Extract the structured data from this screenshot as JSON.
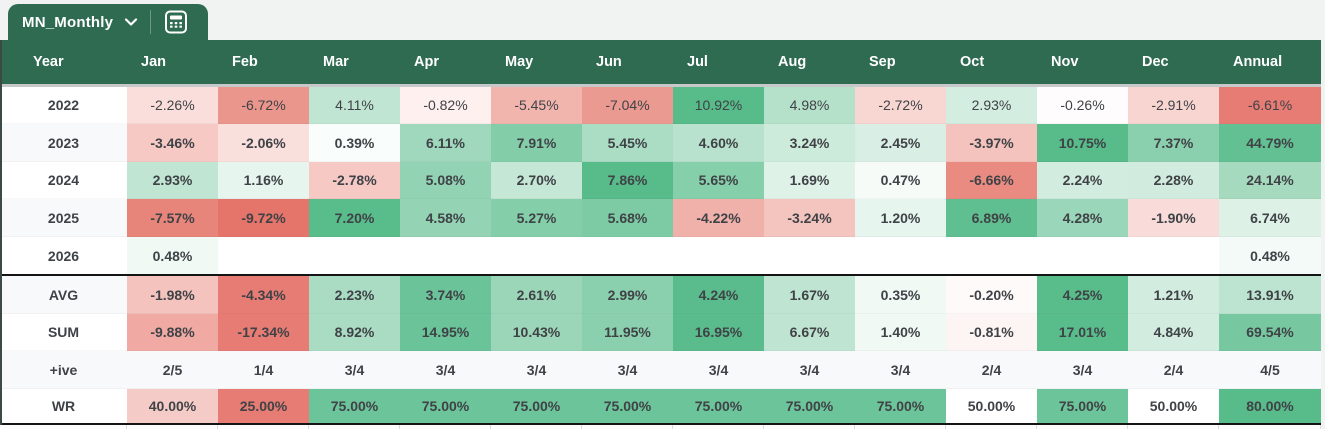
{
  "tab": {
    "title": "MN_Monthly"
  },
  "colors": {
    "brand": "#2e6b51",
    "topbar": "#f1f3f3",
    "divider": "#c6c8ca",
    "thick_border": "#141414",
    "text": "#3f4246",
    "header_text": "#ffffff",
    "band_alt": "#f8f9fa",
    "scale_red_max": "#e67c73",
    "scale_green_max": "#57bb8a"
  },
  "header": {
    "columns": [
      "Year",
      "Jan",
      "Feb",
      "Mar",
      "Apr",
      "May",
      "Jun",
      "Jul",
      "Aug",
      "Sep",
      "Oct",
      "Nov",
      "Dec",
      "Annual"
    ]
  },
  "rows": [
    {
      "label": "2022",
      "band": "#ffffff",
      "bold": false,
      "thick_bottom": false,
      "cells": [
        [
          "-2.26%",
          "#f9dedb"
        ],
        [
          "-6.72%",
          "#eb968c"
        ],
        [
          "4.11%",
          "#c0e5d3"
        ],
        [
          "-0.82%",
          "#fdf0ee"
        ],
        [
          "-5.45%",
          "#f2b5ae"
        ],
        [
          "-7.04%",
          "#eb9a91"
        ],
        [
          "10.92%",
          "#57bb8a"
        ],
        [
          "4.98%",
          "#b5e1cb"
        ],
        [
          "-2.72%",
          "#f8d7d3"
        ],
        [
          "2.93%",
          "#d3ede0"
        ],
        [
          "-0.26%",
          "#fefcfc"
        ],
        [
          "-2.91%",
          "#f8d5d1"
        ],
        [
          "-6.61%",
          "#e67c73"
        ]
      ]
    },
    {
      "label": "2023",
      "band": "#f8f9fa",
      "bold": true,
      "thick_bottom": false,
      "cells": [
        [
          "-3.46%",
          "#f6c9c4"
        ],
        [
          "-2.06%",
          "#fae0dd"
        ],
        [
          "0.39%",
          "#f9fdfb"
        ],
        [
          "6.11%",
          "#a0d8bd"
        ],
        [
          "7.91%",
          "#83cda9"
        ],
        [
          "5.45%",
          "#aaddc3"
        ],
        [
          "4.60%",
          "#b8e2cd"
        ],
        [
          "3.24%",
          "#cdebdb"
        ],
        [
          "2.45%",
          "#d9efe5"
        ],
        [
          "-3.97%",
          "#f5c3bd"
        ],
        [
          "10.75%",
          "#57bb8a"
        ],
        [
          "7.37%",
          "#8bd0ae"
        ],
        [
          "44.79%",
          "#63c093"
        ]
      ]
    },
    {
      "label": "2024",
      "band": "#ffffff",
      "bold": true,
      "thick_bottom": false,
      "cells": [
        [
          "2.93%",
          "#c0e5d2"
        ],
        [
          "1.16%",
          "#e6f5ee"
        ],
        [
          "-2.78%",
          "#f6c9c5"
        ],
        [
          "5.08%",
          "#92d3b4"
        ],
        [
          "2.70%",
          "#c5e7d6"
        ],
        [
          "7.86%",
          "#57bb8a"
        ],
        [
          "5.65%",
          "#86cfab"
        ],
        [
          "1.69%",
          "#dff2e8"
        ],
        [
          "0.47%",
          "#f6fbf8"
        ],
        [
          "-6.66%",
          "#e98b81"
        ],
        [
          "2.24%",
          "#d2ecdf"
        ],
        [
          "2.28%",
          "#d1ecdf"
        ],
        [
          "24.14%",
          "#a6dabf"
        ]
      ]
    },
    {
      "label": "2025",
      "band": "#f8f9fa",
      "bold": true,
      "thick_bottom": false,
      "cells": [
        [
          "-7.57%",
          "#e8857b"
        ],
        [
          "-9.72%",
          "#e5746a"
        ],
        [
          "7.20%",
          "#58bc8b"
        ],
        [
          "4.58%",
          "#94d4b5"
        ],
        [
          "5.27%",
          "#84cea9"
        ],
        [
          "5.68%",
          "#7ccba4"
        ],
        [
          "-4.22%",
          "#f0b1aa"
        ],
        [
          "-3.24%",
          "#f4c4bf"
        ],
        [
          "1.20%",
          "#e6f5ee"
        ],
        [
          "6.89%",
          "#60bf90"
        ],
        [
          "4.28%",
          "#9ad6b9"
        ],
        [
          "-1.90%",
          "#f9dcd9"
        ],
        [
          "6.74%",
          "#ddf1e7"
        ]
      ]
    },
    {
      "label": "2026",
      "band": "#ffffff",
      "bold": true,
      "thick_bottom": true,
      "cells": [
        [
          "0.48%",
          "#f0f9f4"
        ],
        [
          "",
          ""
        ],
        [
          "",
          ""
        ],
        [
          "",
          ""
        ],
        [
          "",
          ""
        ],
        [
          "",
          ""
        ],
        [
          "",
          ""
        ],
        [
          "",
          ""
        ],
        [
          "",
          ""
        ],
        [
          "",
          ""
        ],
        [
          "",
          ""
        ],
        [
          "",
          ""
        ],
        [
          "0.48%",
          "#f4faf7"
        ]
      ]
    },
    {
      "label": "AVG",
      "band": "#f8f9fa",
      "bold": true,
      "thick_bottom": false,
      "cells": [
        [
          "-1.98%",
          "#f4c3be"
        ],
        [
          "-4.34%",
          "#e67c73"
        ],
        [
          "2.23%",
          "#a9dcc3"
        ],
        [
          "3.74%",
          "#6bc399"
        ],
        [
          "2.61%",
          "#9bd6b9"
        ],
        [
          "2.99%",
          "#8bd0ae"
        ],
        [
          "4.24%",
          "#5abc8c"
        ],
        [
          "1.67%",
          "#bfe5d2"
        ],
        [
          "0.35%",
          "#f1f9f5"
        ],
        [
          "-0.20%",
          "#fefafa"
        ],
        [
          "4.25%",
          "#59bc8b"
        ],
        [
          "1.21%",
          "#d2ecdf"
        ],
        [
          "13.91%",
          "#bce4d0"
        ]
      ]
    },
    {
      "label": "SUM",
      "band": "#ffffff",
      "bold": true,
      "thick_bottom": false,
      "cells": [
        [
          "-9.88%",
          "#f0aaa3"
        ],
        [
          "-17.34%",
          "#e67c73"
        ],
        [
          "8.92%",
          "#a9dcc3"
        ],
        [
          "14.95%",
          "#6bc399"
        ],
        [
          "10.43%",
          "#9bd6b9"
        ],
        [
          "11.95%",
          "#8bd0ae"
        ],
        [
          "16.95%",
          "#5abc8c"
        ],
        [
          "6.67%",
          "#bfe5d2"
        ],
        [
          "1.40%",
          "#f1f9f5"
        ],
        [
          "-0.81%",
          "#fdf5f4"
        ],
        [
          "17.01%",
          "#58bc8b"
        ],
        [
          "4.84%",
          "#d2ecdf"
        ],
        [
          "69.54%",
          "#77c8a1"
        ]
      ]
    },
    {
      "label": "+ive",
      "band": "#f8f9fa",
      "bold": true,
      "thick_bottom": false,
      "cells": [
        [
          "2/5",
          "#f8f9fa"
        ],
        [
          "1/4",
          "#f8f9fa"
        ],
        [
          "3/4",
          "#f8f9fa"
        ],
        [
          "3/4",
          "#f8f9fa"
        ],
        [
          "3/4",
          "#f8f9fa"
        ],
        [
          "3/4",
          "#f8f9fa"
        ],
        [
          "3/4",
          "#f8f9fa"
        ],
        [
          "3/4",
          "#f8f9fa"
        ],
        [
          "3/4",
          "#f8f9fa"
        ],
        [
          "2/4",
          "#f8f9fa"
        ],
        [
          "3/4",
          "#f8f9fa"
        ],
        [
          "2/4",
          "#f8f9fa"
        ],
        [
          "4/5",
          "#f8f9fa"
        ]
      ]
    },
    {
      "label": "WR",
      "band": "#ffffff",
      "bold": true,
      "thick_bottom": true,
      "cells": [
        [
          "40.00%",
          "#f5cbc7"
        ],
        [
          "25.00%",
          "#e67c73"
        ],
        [
          "75.00%",
          "#6cc49a"
        ],
        [
          "75.00%",
          "#6cc49a"
        ],
        [
          "75.00%",
          "#6cc49a"
        ],
        [
          "75.00%",
          "#6cc49a"
        ],
        [
          "75.00%",
          "#6cc49a"
        ],
        [
          "75.00%",
          "#6cc49a"
        ],
        [
          "75.00%",
          "#6cc49a"
        ],
        [
          "50.00%",
          "#ffffff"
        ],
        [
          "75.00%",
          "#6cc49a"
        ],
        [
          "50.00%",
          "#ffffff"
        ],
        [
          "80.00%",
          "#57bb8a"
        ]
      ]
    }
  ]
}
